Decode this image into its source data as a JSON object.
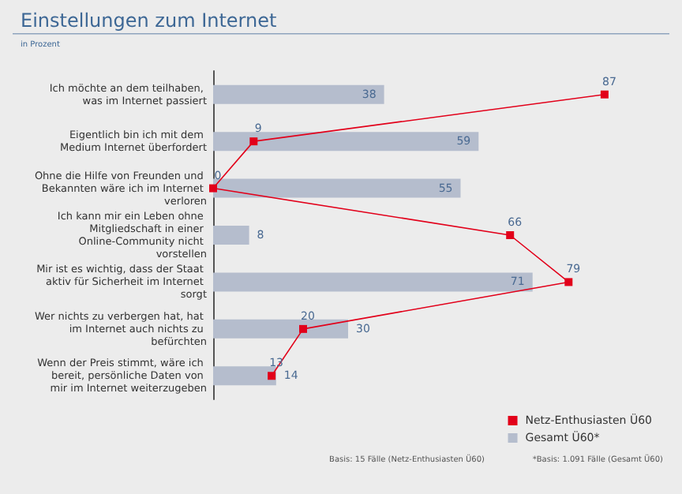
{
  "chart_data": {
    "type": "bar",
    "orientation": "horizontal",
    "title": "Einstellungen zum Internet",
    "subtitle": "in Prozent",
    "categories": [
      "Ich möchte an dem teilhaben, was im Internet passiert",
      "Eigentlich bin ich mit dem Medium Internet überfordert",
      "Ohne die Hilfe von Freunden und Bekannten wäre ich im Internet verloren",
      "Ich kann mir ein Leben ohne Mitgliedschaft in einer Online-Community nicht vorstellen",
      "Mir ist es wichtig, dass der Staat aktiv für Sicherheit im Internet sorgt",
      "Wer nichts zu verbergen hat, hat im Internet auch nichts zu befürchten",
      "Wenn der Preis stimmt, wäre ich bereit, persönliche Daten von mir im Internet weiterzugeben"
    ],
    "series": [
      {
        "name": "Netz-Enthusiasten Ü60",
        "type": "line",
        "color": "#e2001a",
        "values": [
          87,
          9,
          0,
          66,
          79,
          20,
          13
        ]
      },
      {
        "name": "Gesamt Ü60*",
        "color": "#b5bdcd",
        "values": [
          38,
          59,
          55,
          8,
          71,
          30,
          14
        ]
      }
    ],
    "data_labels": true,
    "marker": "square",
    "legend": "bottom right",
    "annotations": [
      "Basis: 15 Fälle (Netz-Enthusiasten Ü60)",
      "*Basis: 1.091 Fälle (Gesamt Ü60)"
    ]
  }
}
